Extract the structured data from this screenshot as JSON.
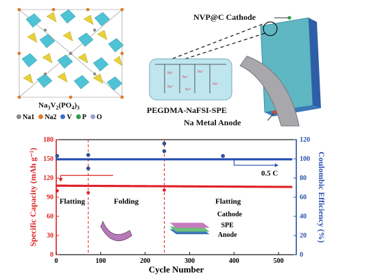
{
  "crystal": {
    "formula_main": "Na",
    "formula_sub1": "3",
    "formula_mid": "V",
    "formula_sub2": "2",
    "formula_mid2": "(PO",
    "formula_sub3": "4",
    "formula_end": ")",
    "formula_sub4": "3",
    "legend": [
      {
        "label": "Na1",
        "color": "#8a8a8a"
      },
      {
        "label": "Na2",
        "color": "#e07a2a"
      },
      {
        "label": "V",
        "color": "#3b6fc4"
      },
      {
        "label": "P",
        "color": "#2e9e4a"
      },
      {
        "label": "O",
        "color": "#9aa0d0"
      }
    ]
  },
  "cell": {
    "cathode_label": "NVP@C Cathode",
    "spe_label": "PEGDMA-NaFSI-SPE",
    "anode_label": "Na Metal Anode"
  },
  "chart_data": {
    "type": "scatter",
    "xlabel": "Cycle Number",
    "ylabel_left": "Specific Capacity (mAh g⁻¹)",
    "ylabel_right": "Coulombic Efficiency (%)",
    "xlim": [
      0,
      540
    ],
    "ylim_left": [
      0,
      180
    ],
    "ylim_right": [
      0,
      120
    ],
    "x_ticks": [
      0,
      100,
      200,
      300,
      400,
      500
    ],
    "y_ticks_left": [
      0,
      30,
      60,
      90,
      120,
      150,
      180
    ],
    "y_ticks_right": [
      0,
      20,
      40,
      60,
      80,
      100,
      120
    ],
    "rate_label": "0.5 C",
    "regions": [
      {
        "label": "Flatting",
        "x_start": 0,
        "x_end": 72
      },
      {
        "label": "Folding",
        "x_start": 72,
        "x_end": 243
      },
      {
        "label": "Flatting",
        "x_start": 243,
        "x_end": 530
      }
    ],
    "series": [
      {
        "name": "Specific Capacity",
        "axis": "left",
        "color": "#e0202a",
        "baseline": 108,
        "end": 106
      },
      {
        "name": "Coulombic Efficiency",
        "axis": "right",
        "color": "#2a52b0",
        "baseline": 99.5
      }
    ],
    "outliers_capacity": [
      [
        72,
        97
      ],
      [
        243,
        101
      ],
      [
        2,
        100
      ]
    ],
    "outliers_ce": [
      [
        72,
        104
      ],
      [
        72,
        90
      ],
      [
        243,
        116
      ],
      [
        243,
        108
      ],
      [
        375,
        103
      ],
      [
        2,
        103
      ]
    ],
    "inset_labels": {
      "cathode": "Cathode",
      "spe": "SPE",
      "anode": "Anode"
    }
  }
}
